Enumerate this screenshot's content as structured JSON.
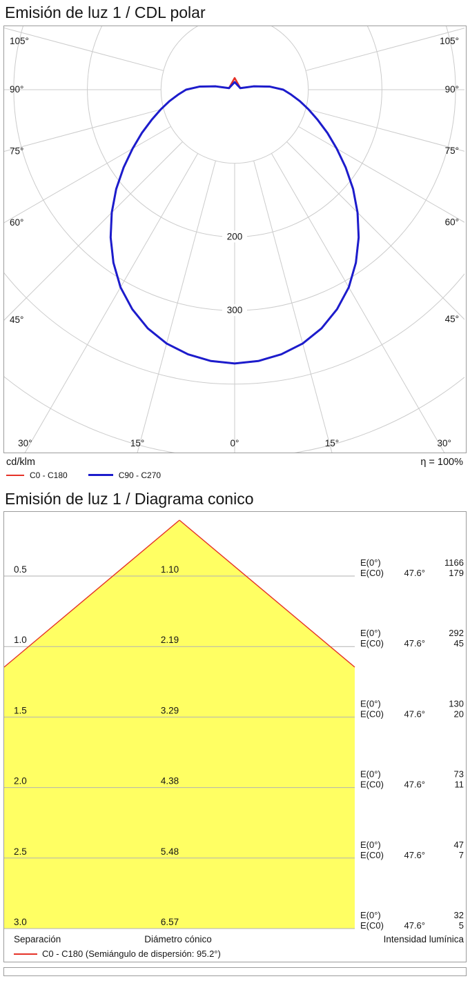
{
  "colors": {
    "c0": "#e53228",
    "c90": "#1c1ccc",
    "grid": "#cbcbcb",
    "cone_grid": "#b2b2b2",
    "cone_fill": "#ffff63"
  },
  "polar_section": {
    "title": "Emisión de luz 1 / CDL polar",
    "unit": "cd/klm",
    "eta": "η = 100%",
    "legend": [
      {
        "label": "C0 - C180",
        "color": "#e53228"
      },
      {
        "label": "C90 - C270",
        "color": "#1c1ccc"
      }
    ]
  },
  "cone_section": {
    "title": "Emisión de luz 1 / Diagrama conico"
  },
  "chart_data": {
    "polar": {
      "type": "polar-intensity",
      "unit": "cd/klm",
      "eta_value": "100%",
      "rings": [
        100,
        200,
        300,
        400,
        500
      ],
      "labeled_rings": [
        200,
        300
      ],
      "ray_angles": [
        0,
        15,
        30,
        45,
        60,
        75,
        90,
        105
      ],
      "gamma_step": 5,
      "series": [
        {
          "name": "C0 - C180",
          "color": "#e53228",
          "width": 2.5,
          "nub": 17,
          "values": [
            372,
            370,
            365,
            357,
            345,
            329,
            310,
            287,
            262,
            236,
            210,
            184,
            160,
            139,
            120,
            104,
            90,
            77,
            66,
            48,
            26,
            8
          ]
        },
        {
          "name": "C90 - C270",
          "color": "#1c1ccc",
          "width": 3,
          "nub": 11,
          "values": [
            372,
            370,
            365,
            357,
            345,
            329,
            310,
            287,
            262,
            236,
            210,
            184,
            160,
            139,
            120,
            104,
            90,
            77,
            66,
            48,
            26,
            8
          ]
        }
      ]
    },
    "cone": {
      "type": "cone-diagram",
      "e0_label": "E(0°)",
      "ec0_label": "E(C0)",
      "angle": "47.6°",
      "legend": "C0 - C180 (Semiángulo de dispersión: 95.2°)",
      "columns": {
        "separation": "Separación",
        "diameter": "Diámetro cónico",
        "intensity": "Intensidad lumínica"
      },
      "rows": [
        {
          "separation": "0.5",
          "diameter": "1.10",
          "e0": "1166",
          "ec0": "179"
        },
        {
          "separation": "1.0",
          "diameter": "2.19",
          "e0": "292",
          "ec0": "45"
        },
        {
          "separation": "1.5",
          "diameter": "3.29",
          "e0": "130",
          "ec0": "20"
        },
        {
          "separation": "2.0",
          "diameter": "4.38",
          "e0": "73",
          "ec0": "11"
        },
        {
          "separation": "2.5",
          "diameter": "5.48",
          "e0": "47",
          "ec0": "7"
        },
        {
          "separation": "3.0",
          "diameter": "6.57",
          "e0": "32",
          "ec0": "5"
        }
      ]
    }
  }
}
